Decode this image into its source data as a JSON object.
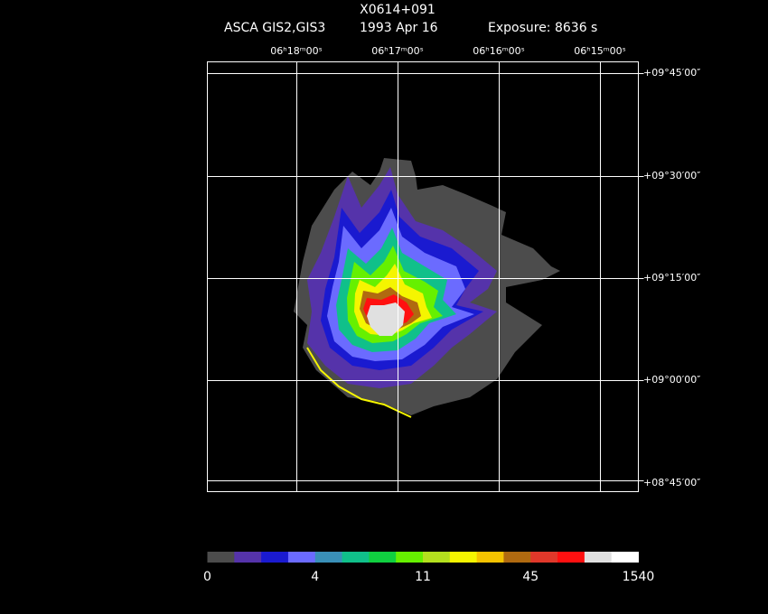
{
  "header": {
    "title": "X0614+091",
    "instrument": "ASCA GIS2,GIS3",
    "date": "1993 Apr 16",
    "exposure": "Exposure: 8636 s"
  },
  "axes": {
    "ra_labels": [
      "06ʰ18ᵐ00ˢ",
      "06ʰ17ᵐ00ˢ",
      "06ʰ16ᵐ00ˢ",
      "06ʰ15ᵐ00ˢ"
    ],
    "dec_labels": [
      "+09°45′00″",
      "+09°30′00″",
      "+09°15′00″",
      "+09°00′00″",
      "+08°45′00″"
    ]
  },
  "colorbar": {
    "colors": [
      "#4c4c4c",
      "#5533aa",
      "#1a1ad0",
      "#6b6bff",
      "#3a90b8",
      "#10c08a",
      "#10d040",
      "#66f000",
      "#b4e01e",
      "#f5f500",
      "#f5c300",
      "#b06a10",
      "#e0382a",
      "#ff1010",
      "#e0e0e0",
      "#ffffff"
    ],
    "labels": [
      "0",
      "4",
      "11",
      "45",
      "1540"
    ]
  }
}
